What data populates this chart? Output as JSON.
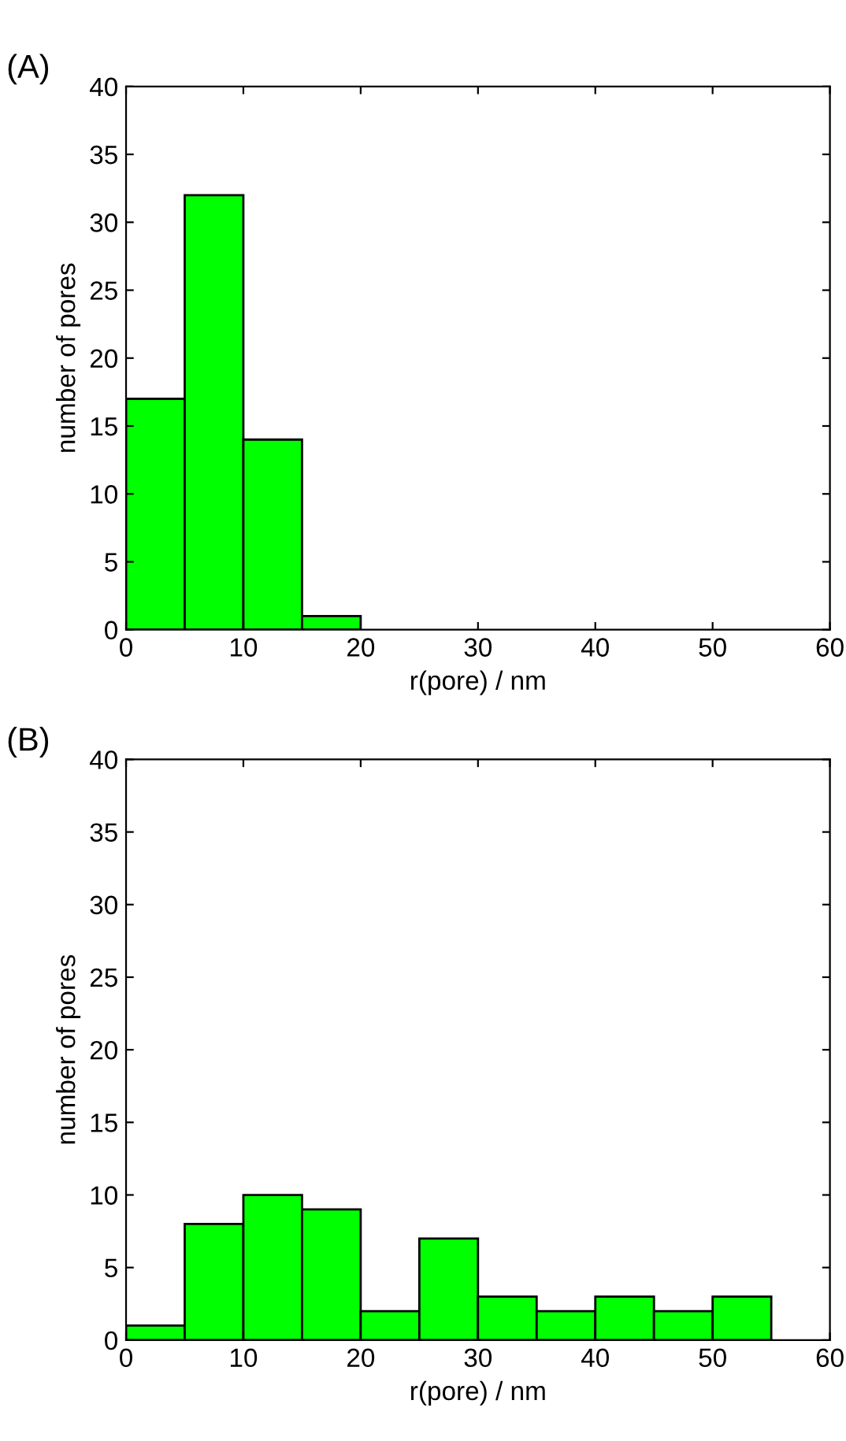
{
  "chart_data": [
    {
      "type": "histogram",
      "title": "(A)",
      "xlabel": "r(pore) / nm",
      "ylabel": "number of pores",
      "bins": [
        0,
        5,
        10,
        15,
        20,
        25,
        30,
        35,
        40,
        45,
        50,
        55,
        60
      ],
      "values": [
        17,
        32,
        14,
        1,
        0,
        0,
        0,
        0,
        0,
        0,
        0,
        0
      ],
      "color": "#00ff00",
      "xlim": [
        0,
        60
      ],
      "ylim": [
        0,
        40
      ],
      "xticks": [
        0,
        10,
        20,
        30,
        40,
        50,
        60
      ],
      "yticks": [
        0,
        5,
        10,
        15,
        20,
        25,
        30,
        35,
        40
      ],
      "grid": false
    },
    {
      "type": "histogram",
      "title": "(B)",
      "xlabel": "r(pore) / nm",
      "ylabel": "number of pores",
      "bins": [
        0,
        5,
        10,
        15,
        20,
        25,
        30,
        35,
        40,
        45,
        50,
        55,
        60
      ],
      "values": [
        1,
        8,
        10,
        9,
        2,
        7,
        3,
        2,
        3,
        2,
        3,
        0
      ],
      "color": "#00ff00",
      "xlim": [
        0,
        60
      ],
      "ylim": [
        0,
        40
      ],
      "xticks": [
        0,
        10,
        20,
        30,
        40,
        50,
        60
      ],
      "yticks": [
        0,
        5,
        10,
        15,
        20,
        25,
        30,
        35,
        40
      ],
      "grid": false
    }
  ]
}
